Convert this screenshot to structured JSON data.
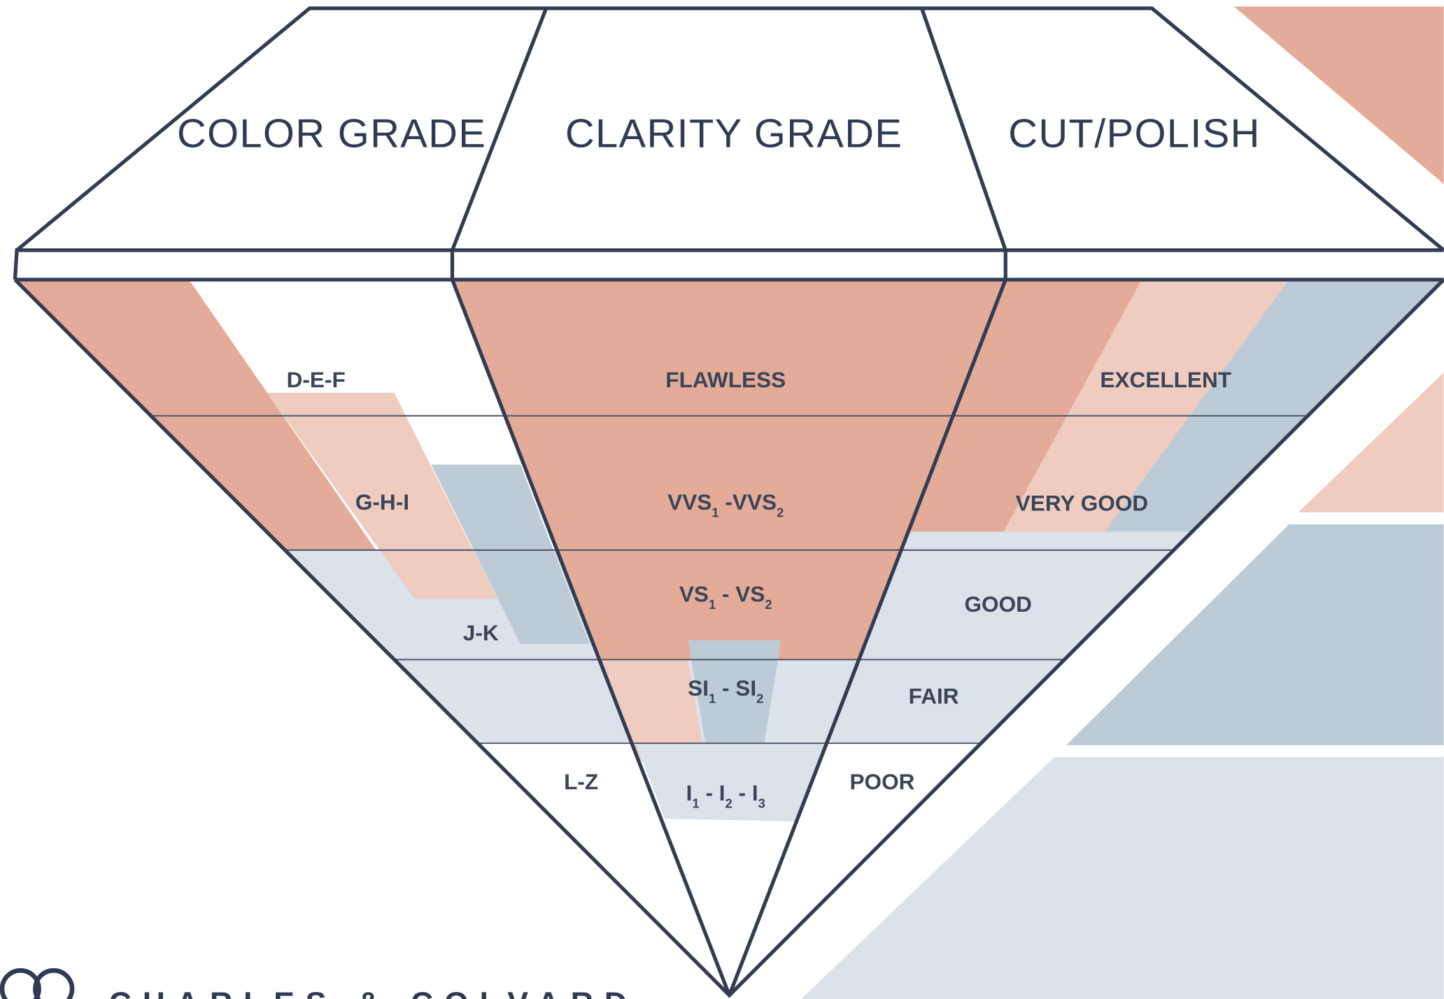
{
  "header": {
    "columns": [
      "COLOR GRADE",
      "CLARITY GRADE",
      "CUT/POLISH"
    ]
  },
  "color_grades": [
    {
      "parts": [
        "D-E-F"
      ]
    },
    {
      "parts": [
        "G-H-I"
      ]
    },
    {
      "parts": [
        "J-K"
      ]
    },
    {
      "parts": [
        "L-Z"
      ]
    }
  ],
  "clarity_grades": [
    {
      "parts": [
        "FLAWLESS"
      ]
    },
    {
      "parts": [
        "VVS",
        "1",
        " -VVS",
        "2"
      ]
    },
    {
      "parts": [
        "VS",
        "1",
        " - VS",
        "2"
      ]
    },
    {
      "parts": [
        "SI",
        "1",
        " - SI",
        "2"
      ]
    },
    {
      "parts": [
        "I",
        "1",
        " - I",
        "2",
        " - I",
        "3"
      ]
    }
  ],
  "cut_grades": [
    {
      "parts": [
        "EXCELLENT"
      ]
    },
    {
      "parts": [
        "VERY GOOD"
      ]
    },
    {
      "parts": [
        "GOOD"
      ]
    },
    {
      "parts": [
        "FAIR"
      ]
    },
    {
      "parts": [
        "POOR"
      ]
    }
  ],
  "logo": {
    "text": "CHARLES & COLVARD"
  }
}
